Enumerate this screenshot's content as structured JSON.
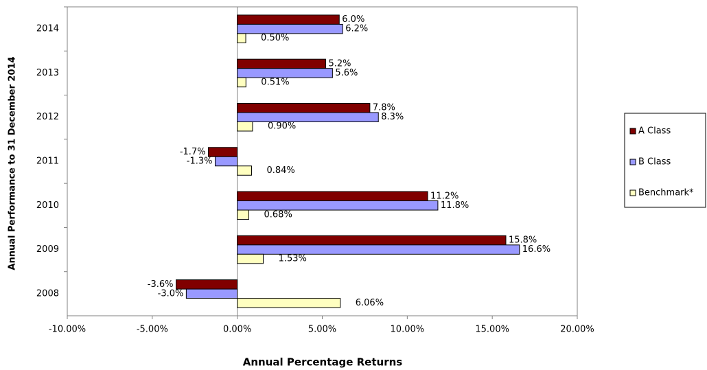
{
  "chart_data": {
    "type": "hbar",
    "xlabel": "Annual Percentage Returns",
    "ylabel": "Annual Performance to 31 December 2014",
    "categories": [
      "2008",
      "2009",
      "2010",
      "2011",
      "2012",
      "2013",
      "2014"
    ],
    "series": [
      {
        "name": "A Class",
        "color": "#800000",
        "values": [
          -3.6,
          15.8,
          11.2,
          -1.7,
          7.8,
          5.2,
          6.0
        ],
        "value_labels": [
          "-3.6%",
          "15.8%",
          "11.2%",
          "-1.7%",
          "7.8%",
          "5.2%",
          "6.0%"
        ]
      },
      {
        "name": "B Class",
        "color": "#9999ff",
        "values": [
          -3.0,
          16.6,
          11.8,
          -1.3,
          8.3,
          5.6,
          6.2
        ],
        "value_labels": [
          "-3.0%",
          "16.6%",
          "11.8%",
          "-1.3%",
          "8.3%",
          "5.6%",
          "6.2%"
        ]
      },
      {
        "name": "Benchmark*",
        "color": "#ffffc0",
        "values": [
          6.06,
          1.53,
          0.68,
          0.84,
          0.9,
          0.51,
          0.5
        ],
        "value_labels": [
          "6.06%",
          "1.53%",
          "0.68%",
          "0.84%",
          "0.90%",
          "0.51%",
          "0.50%"
        ]
      }
    ],
    "xlim": [
      -10,
      20
    ],
    "xticks": [
      {
        "value": -10,
        "label": "-10.00%"
      },
      {
        "value": -5,
        "label": "-5.00%"
      },
      {
        "value": 0,
        "label": "0.00%"
      },
      {
        "value": 5,
        "label": "5.00%"
      },
      {
        "value": 10,
        "label": "10.00%"
      },
      {
        "value": 15,
        "label": "15.00%"
      },
      {
        "value": 20,
        "label": "20.00%"
      }
    ],
    "legend": "right"
  }
}
